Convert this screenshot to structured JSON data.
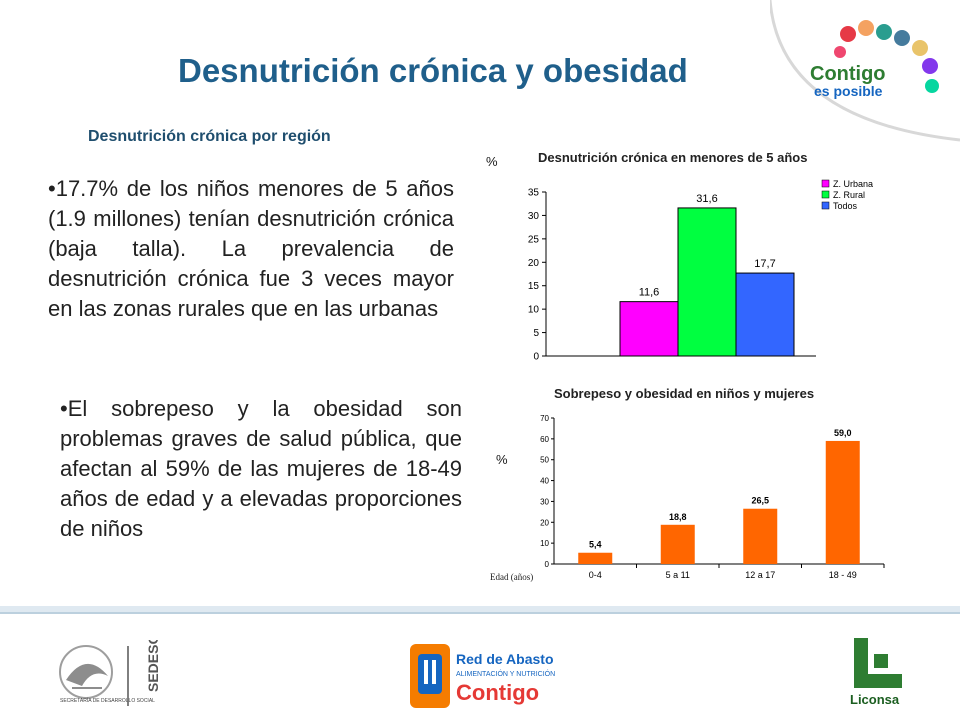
{
  "slide": {
    "title": "Desnutrición crónica y obesidad",
    "subtitle": "Desnutrición crónica por región",
    "paragraph1": "•17.7% de los niños menores de 5 años (1.9 millones) tenían desnutrición crónica (baja talla). La prevalencia de desnutrición crónica fue 3 veces mayor en las zonas rurales que en las urbanas",
    "paragraph2": "•El sobrepeso y la obesidad son problemas graves de salud pública, que afectan al 59% de las mujeres de 18-49 años de edad y a elevadas proporciones de niños"
  },
  "logos": {
    "contigo_top_line1": "Contigo",
    "contigo_top_line2": "es posible",
    "sedesol_small": "SECRETARÍA DE DESARROLLO SOCIAL",
    "sedesol_name": "SEDESOL",
    "abasto_line1": "Red de Abasto",
    "abasto_line2": "ALIMENTACIÓN Y NUTRICIÓN",
    "abasto_line3": "Contigo",
    "liconsa": "Liconsa"
  },
  "colors": {
    "title_blue": "#1f5f8b",
    "urbana": "#ff00ff",
    "rural": "#00ff40",
    "todos": "#3366ff",
    "orange": "#ff6600"
  },
  "chart_data": [
    {
      "type": "bar",
      "title": "Desnutrición crónica en menores de 5 años",
      "ylabel": "%",
      "ylim": [
        0,
        35
      ],
      "yticks": [
        0,
        5,
        10,
        15,
        20,
        25,
        30,
        35
      ],
      "legend_position": "top-right",
      "series": [
        {
          "name": "Z. Urbana",
          "value": 11.6,
          "label": "11,6",
          "color": "#ff00ff"
        },
        {
          "name": "Z. Rural",
          "value": 31.6,
          "label": "31,6",
          "color": "#00ff40"
        },
        {
          "name": "Todos",
          "value": 17.7,
          "label": "17,7",
          "color": "#3366ff"
        }
      ]
    },
    {
      "type": "bar",
      "title": "Sobrepeso y obesidad en niños y mujeres",
      "ylabel": "%",
      "xlabel": "Edad (años)",
      "ylim": [
        0,
        70
      ],
      "yticks": [
        0,
        10,
        20,
        30,
        40,
        50,
        60,
        70
      ],
      "categories": [
        "0-4",
        "5 a 11",
        "12 a 17",
        "18 - 49"
      ],
      "values": [
        5.4,
        18.8,
        26.5,
        59.0
      ],
      "labels": [
        "5,4",
        "18,8",
        "26,5",
        "59,0"
      ],
      "color": "#ff6600"
    }
  ]
}
